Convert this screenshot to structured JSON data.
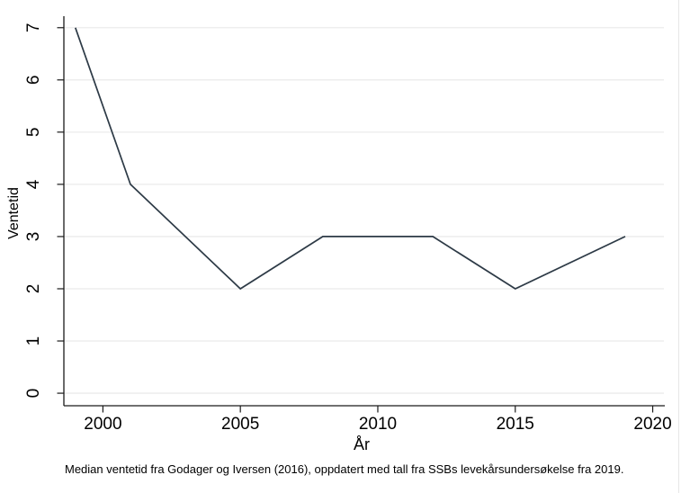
{
  "chart_data": {
    "type": "line",
    "title": "",
    "xlabel": "År",
    "ylabel": "Ventetid",
    "x": [
      1999,
      2001,
      2005,
      2008,
      2012,
      2015,
      2019
    ],
    "values": [
      7,
      4,
      2,
      3,
      3,
      2,
      3
    ],
    "x_ticks": [
      2000,
      2005,
      2010,
      2015,
      2020
    ],
    "y_ticks": [
      0,
      1,
      2,
      3,
      4,
      5,
      6,
      7
    ],
    "xlim": [
      1998.58,
      2020.44
    ],
    "ylim": [
      -0.24,
      7.22
    ],
    "grid": "horizontal-only",
    "legend": "none",
    "y_tick_label_rotation": -90,
    "caption": "Median ventetid fra Godager og Iversen (2016), oppdatert med tall fra SSBs levekårsundersøkelse fra 2019.",
    "colors": {
      "line": "#2d3a46",
      "grid": "#ebebeb",
      "axis": "#1a1a1a",
      "text": "#000000",
      "background": "#ffffff",
      "edge_line": "#e6e6e6"
    }
  }
}
